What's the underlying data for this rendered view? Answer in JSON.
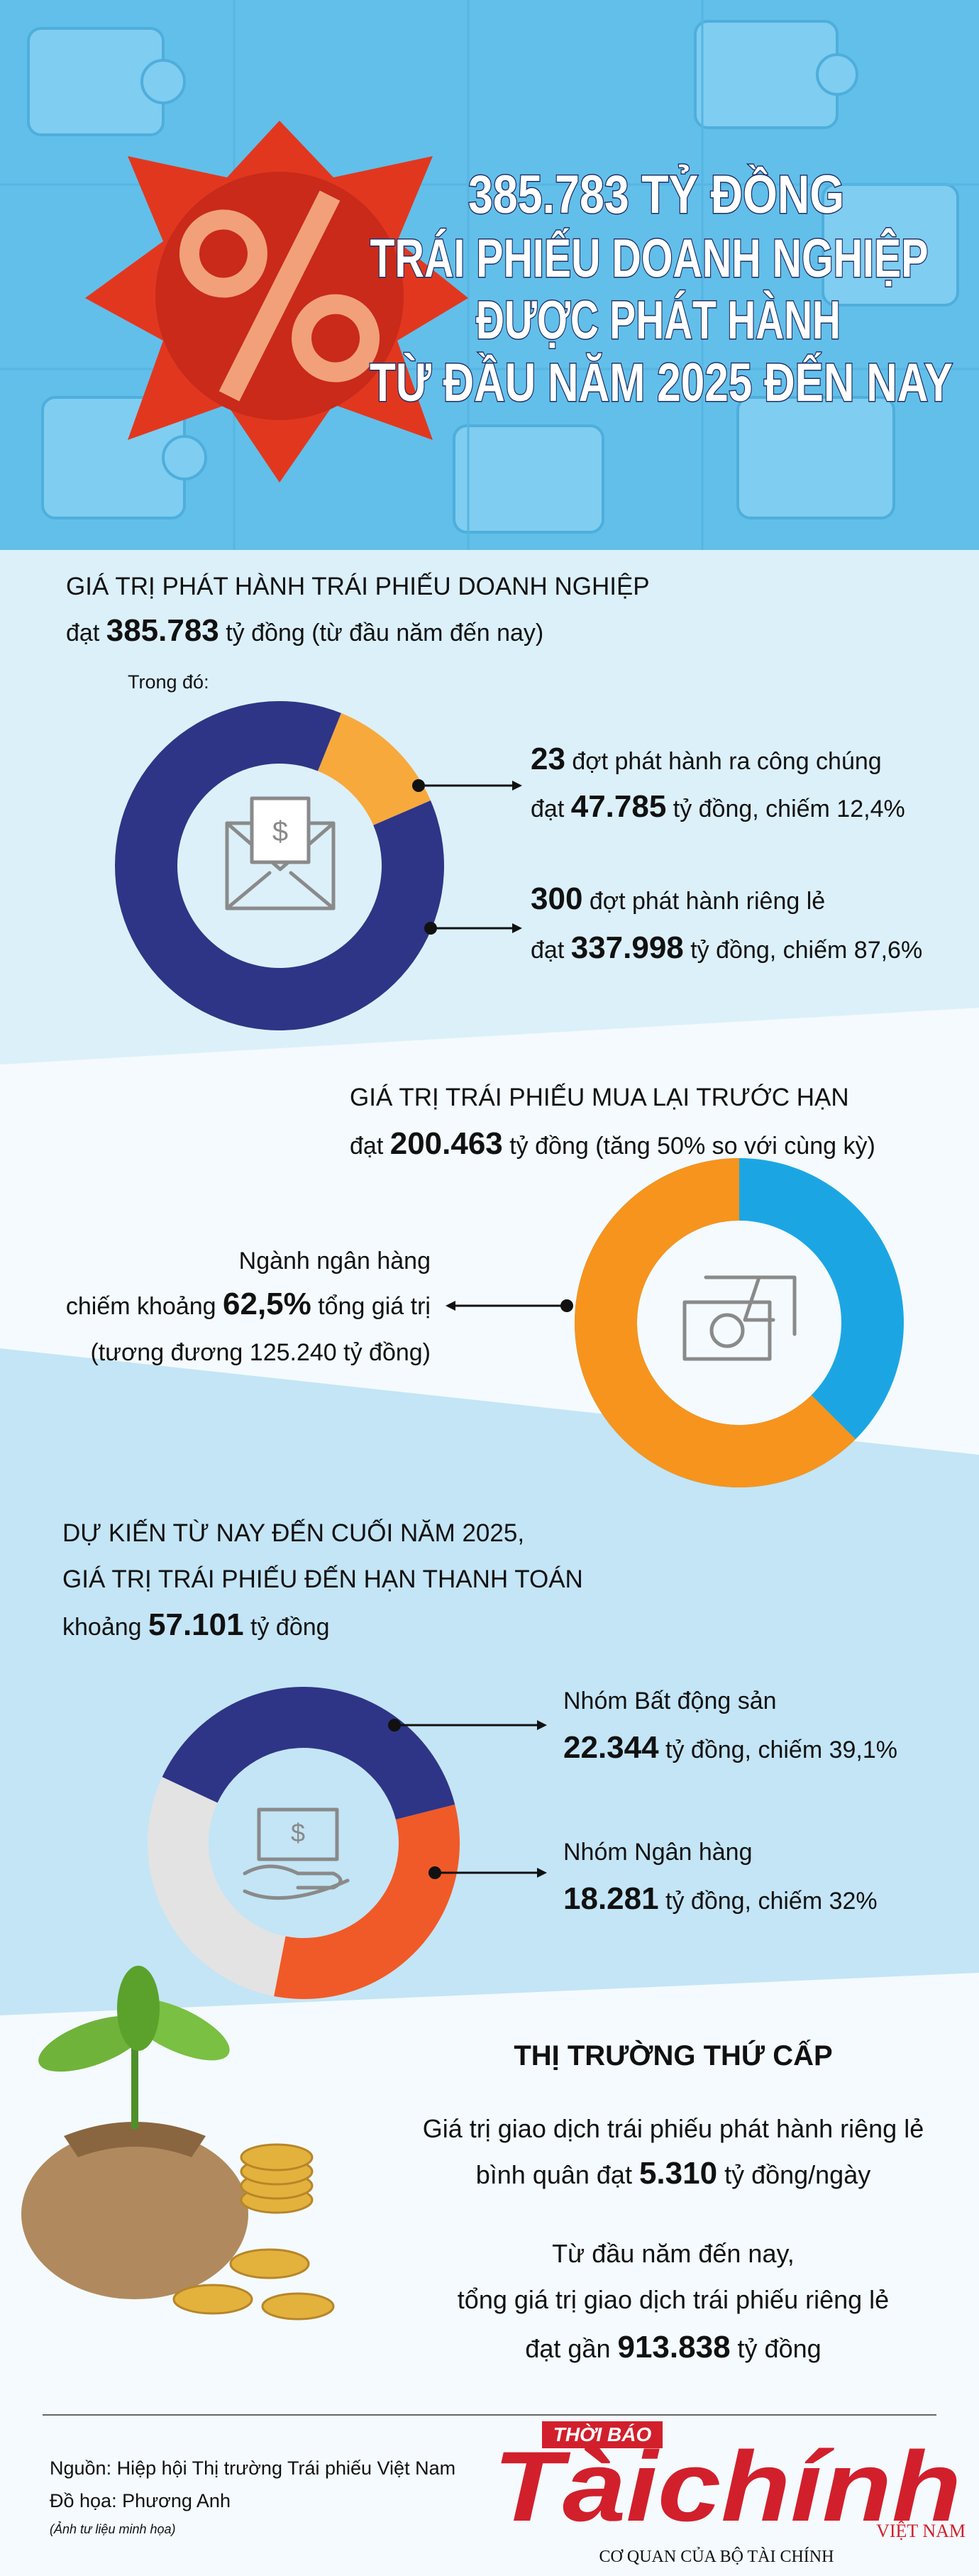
{
  "header": {
    "title_lines": [
      "385.783 TỶ ĐỒNG",
      "TRÁI PHIẾU DOANH NGHIỆP",
      "ĐƯỢC PHÁT HÀNH",
      "TỪ ĐẦU NĂM 2025 ĐẾN NAY"
    ]
  },
  "issuance": {
    "heading": "GIÁ TRỊ PHÁT HÀNH TRÁI PHIẾU DOANH NGHIỆP",
    "amount_line": {
      "prefix": "đạt ",
      "amount": "385.783",
      "suffix": " tỷ đồng (từ đầu năm đến nay)"
    },
    "note": "Trong đó:",
    "segments": [
      {
        "count": "23",
        "label": " đợt phát hành ra công chúng",
        "prefix": "đạt ",
        "amount": "47.785",
        "suffix": " tỷ đồng, chiếm 12,4%",
        "share": 12.4,
        "color": "#f7a93c"
      },
      {
        "count": "300",
        "label": " đợt phát hành riêng lẻ",
        "prefix": "đạt ",
        "amount": "337.998",
        "suffix": " tỷ đồng, chiếm 87,6%",
        "share": 87.6,
        "color": "#2e3586"
      }
    ]
  },
  "buyback": {
    "heading": "GIÁ TRỊ TRÁI PHIẾU MUA LẠI TRƯỚC HẠN",
    "amount_line": {
      "prefix": "đạt ",
      "amount": "200.463",
      "suffix": " tỷ đồng (tăng 50% so với cùng kỳ)"
    },
    "bank": {
      "line1": "Ngành ngân hàng",
      "prefix": "chiếm khoảng ",
      "share_label": "62,5%",
      "suffix": " tổng giá trị",
      "line3": "(tương đương 125.240 tỷ đồng)",
      "share": 62.5,
      "color": "#f7941d"
    },
    "rest_color": "#1ba6e3"
  },
  "maturity": {
    "heading_lines": [
      "DỰ KIẾN TỪ NAY ĐẾN CUỐI NĂM 2025,",
      "GIÁ TRỊ TRÁI PHIẾU ĐẾN HẠN THANH TOÁN"
    ],
    "amount_line": {
      "prefix": "khoảng ",
      "amount": "57.101",
      "suffix": " tỷ đồng"
    },
    "segments": [
      {
        "name": "Nhóm Bất động sản",
        "amount": "22.344",
        "suffix": " tỷ đồng, chiếm 39,1%",
        "share": 39.1,
        "color": "#2e3586"
      },
      {
        "name": "Nhóm Ngân hàng",
        "amount": "18.281",
        "suffix": " tỷ đồng, chiếm 32%",
        "share": 32,
        "color": "#f05a28"
      }
    ],
    "rest_color": "#e3e3e3"
  },
  "secondary": {
    "title": "THỊ TRƯỜNG THỨ CẤP",
    "line1": "Giá trị giao dịch trái phiếu phát hành riêng lẻ",
    "line2": {
      "prefix": "bình quân đạt ",
      "amount": "5.310",
      "suffix": " tỷ đồng/ngày"
    },
    "line3": "Từ đầu năm đến nay,",
    "line4": "tổng giá trị giao dịch trái phiếu riêng lẻ",
    "line5": {
      "prefix": "đạt gần ",
      "amount": "913.838",
      "suffix": " tỷ đồng"
    }
  },
  "footer": {
    "source": "Nguồn: Hiệp hội Thị trường Trái phiếu Việt Nam",
    "graphics": "Đồ họa: Phương Anh",
    "photo_note": "(Ảnh tư liệu minh họa)",
    "logo": {
      "top": "THỜI BÁO",
      "name": "Tàichính",
      "country": "VIỆT NAM",
      "tagline": "CƠ QUAN CỦA BỘ TÀI CHÍNH"
    }
  }
}
